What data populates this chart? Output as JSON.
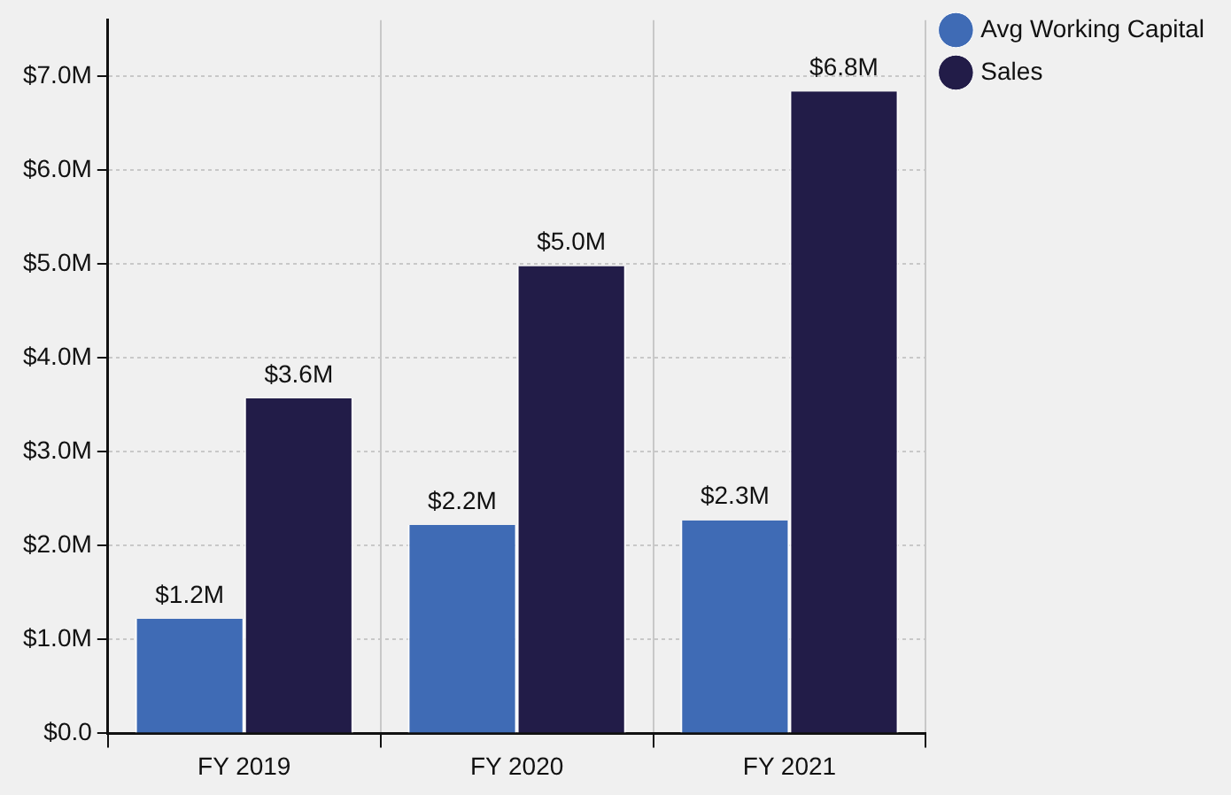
{
  "chart_data": {
    "type": "bar",
    "categories": [
      "FY 2019",
      "FY 2020",
      "FY 2021"
    ],
    "series": [
      {
        "name": "Avg Working Capital",
        "color": "#3f6bb5",
        "values": [
          1.22,
          2.22,
          2.27
        ],
        "value_labels": [
          "$1.2M",
          "$2.2M",
          "$2.3M"
        ]
      },
      {
        "name": "Sales",
        "color": "#221c48",
        "values": [
          3.57,
          4.98,
          6.84
        ],
        "value_labels": [
          "$3.6M",
          "$5.0M",
          "$6.8M"
        ]
      }
    ],
    "ylim": [
      0,
      7.6
    ],
    "yticks": [
      {
        "value": 0,
        "label": "$0.0"
      },
      {
        "value": 1,
        "label": "$1.0M"
      },
      {
        "value": 2,
        "label": "$2.0M"
      },
      {
        "value": 3,
        "label": "$3.0M"
      },
      {
        "value": 4,
        "label": "$4.0M"
      },
      {
        "value": 5,
        "label": "$5.0M"
      },
      {
        "value": 6,
        "label": "$6.0M"
      },
      {
        "value": 7,
        "label": "$7.0M"
      }
    ],
    "grid": true,
    "legend": "top right"
  }
}
